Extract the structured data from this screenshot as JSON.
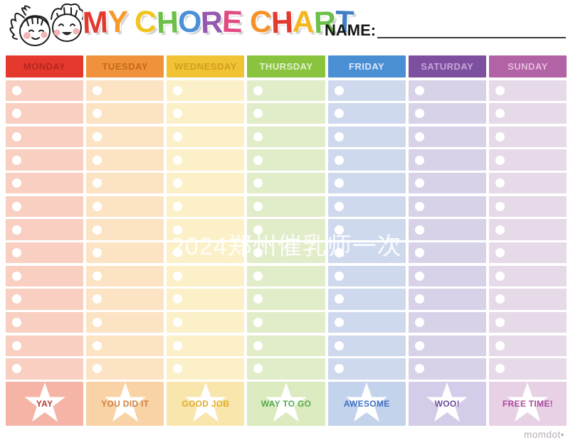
{
  "header": {
    "title_letters": [
      {
        "ch": "M",
        "color": "#e23a30"
      },
      {
        "ch": "Y",
        "color": "#f59a29"
      },
      {
        "ch": " ",
        "color": "#000000"
      },
      {
        "ch": "C",
        "color": "#f2c421"
      },
      {
        "ch": "H",
        "color": "#6cbf48"
      },
      {
        "ch": "O",
        "color": "#4a90d9"
      },
      {
        "ch": "R",
        "color": "#9458ae"
      },
      {
        "ch": "E",
        "color": "#e24a84"
      },
      {
        "ch": " ",
        "color": "#000000"
      },
      {
        "ch": "C",
        "color": "#f59329"
      },
      {
        "ch": "H",
        "color": "#e23a30"
      },
      {
        "ch": "A",
        "color": "#f2b621"
      },
      {
        "ch": "R",
        "color": "#6cbf48"
      },
      {
        "ch": "T",
        "color": "#3f7fc4"
      }
    ],
    "name_label": "NAME:"
  },
  "watermark": {
    "text": "2024郑州催乳师一次",
    "color": "#ffffff"
  },
  "table": {
    "rows_per_day": 13,
    "days": [
      {
        "label": "MONDAY",
        "header_bg": "#e6392e",
        "header_text": "#b3271f",
        "cell_bg": "#f8cfc1",
        "footer_bg": "#f5b4a6",
        "footer_text": "#b13a31",
        "footer_label": "YAY"
      },
      {
        "label": "TUESDAY",
        "header_bg": "#f0923c",
        "header_text": "#c2691c",
        "cell_bg": "#fbe3c4",
        "footer_bg": "#f9d3a6",
        "footer_text": "#cf7f41",
        "footer_label": "YOU DID IT"
      },
      {
        "label": "WEDNESDAY",
        "header_bg": "#f1c233",
        "header_text": "#d09e1f",
        "cell_bg": "#fbf0c7",
        "footer_bg": "#f8e6ad",
        "footer_text": "#e3ab25",
        "footer_label": "GOOD JOB"
      },
      {
        "label": "THURSDAY",
        "header_bg": "#8ac43e",
        "header_text": "#e4f1d2",
        "cell_bg": "#e1ecc9",
        "footer_bg": "#dceac0",
        "footer_text": "#55ab50",
        "footer_label": "WAY TO GO"
      },
      {
        "label": "FRIDAY",
        "header_bg": "#4a8ed4",
        "header_text": "#dce9f8",
        "cell_bg": "#cfd9ed",
        "footer_bg": "#c3d3ec",
        "footer_text": "#3e6fc3",
        "footer_label": "AWESOME"
      },
      {
        "label": "SATURDAY",
        "header_bg": "#7c4f9f",
        "header_text": "#c9a5d9",
        "cell_bg": "#d8d2e9",
        "footer_bg": "#d4cce8",
        "footer_text": "#6b4a9d",
        "footer_label": "WOO!"
      },
      {
        "label": "SUNDAY",
        "header_bg": "#b163a6",
        "header_text": "#e5bbdb",
        "cell_bg": "#e6d9e8",
        "footer_bg": "#e8d1e5",
        "footer_text": "#ac4a9b",
        "footer_label": "FREE TIME!"
      }
    ]
  },
  "branding": {
    "logo_text": "momdot•"
  }
}
